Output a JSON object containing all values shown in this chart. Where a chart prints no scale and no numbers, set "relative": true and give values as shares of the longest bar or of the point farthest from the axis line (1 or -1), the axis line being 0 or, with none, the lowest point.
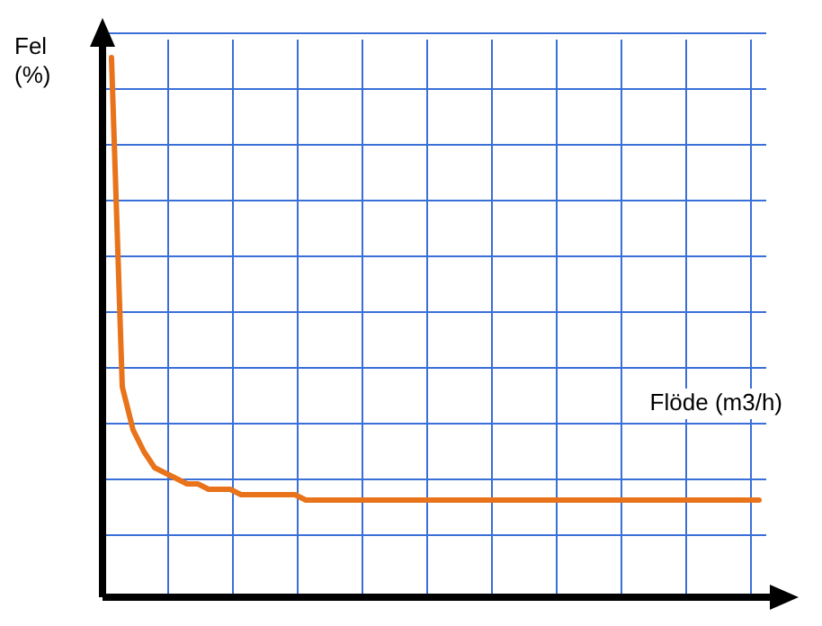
{
  "chart_data": {
    "type": "line",
    "relative": true,
    "xlabel": "Flöde (m3/h)",
    "ylabel": "Fel (%)",
    "grid": true,
    "legend": false,
    "marker": "none",
    "line_style": "solid",
    "categories": [
      null,
      null,
      null,
      null,
      null,
      null,
      null,
      null,
      null,
      null,
      null,
      null,
      null,
      null,
      null,
      null,
      null,
      null,
      null,
      null,
      null,
      null,
      null,
      null,
      null,
      null,
      null,
      null,
      null,
      null,
      null,
      null,
      null,
      null,
      null,
      null,
      null,
      null,
      null,
      null,
      null,
      null,
      null,
      null,
      null,
      null,
      null,
      null,
      null,
      null,
      null,
      null,
      null,
      null,
      null,
      null,
      null,
      null,
      null,
      null,
      null
    ],
    "series": [
      {
        "color": "#e8731a",
        "values": [
          1,
          0.39,
          0.31,
          0.27,
          0.24,
          0.23,
          0.22,
          0.21,
          0.21,
          0.2,
          0.2,
          0.2,
          0.19,
          0.19,
          0.19,
          0.19,
          0.19,
          0.19,
          0.18,
          0.18,
          0.18,
          0.18,
          0.18,
          0.18,
          0.18,
          0.18,
          0.18,
          0.18,
          0.18,
          0.18,
          0.18,
          0.18,
          0.18,
          0.18,
          0.18,
          0.18,
          0.18,
          0.18,
          0.18,
          0.18,
          0.18,
          0.18,
          0.18,
          0.18,
          0.18,
          0.18,
          0.18,
          0.18,
          0.18,
          0.18,
          0.18,
          0.18,
          0.18,
          0.18,
          0.18,
          0.18,
          0.18,
          0.18,
          0.18,
          0.18,
          0.18
        ]
      }
    ]
  }
}
